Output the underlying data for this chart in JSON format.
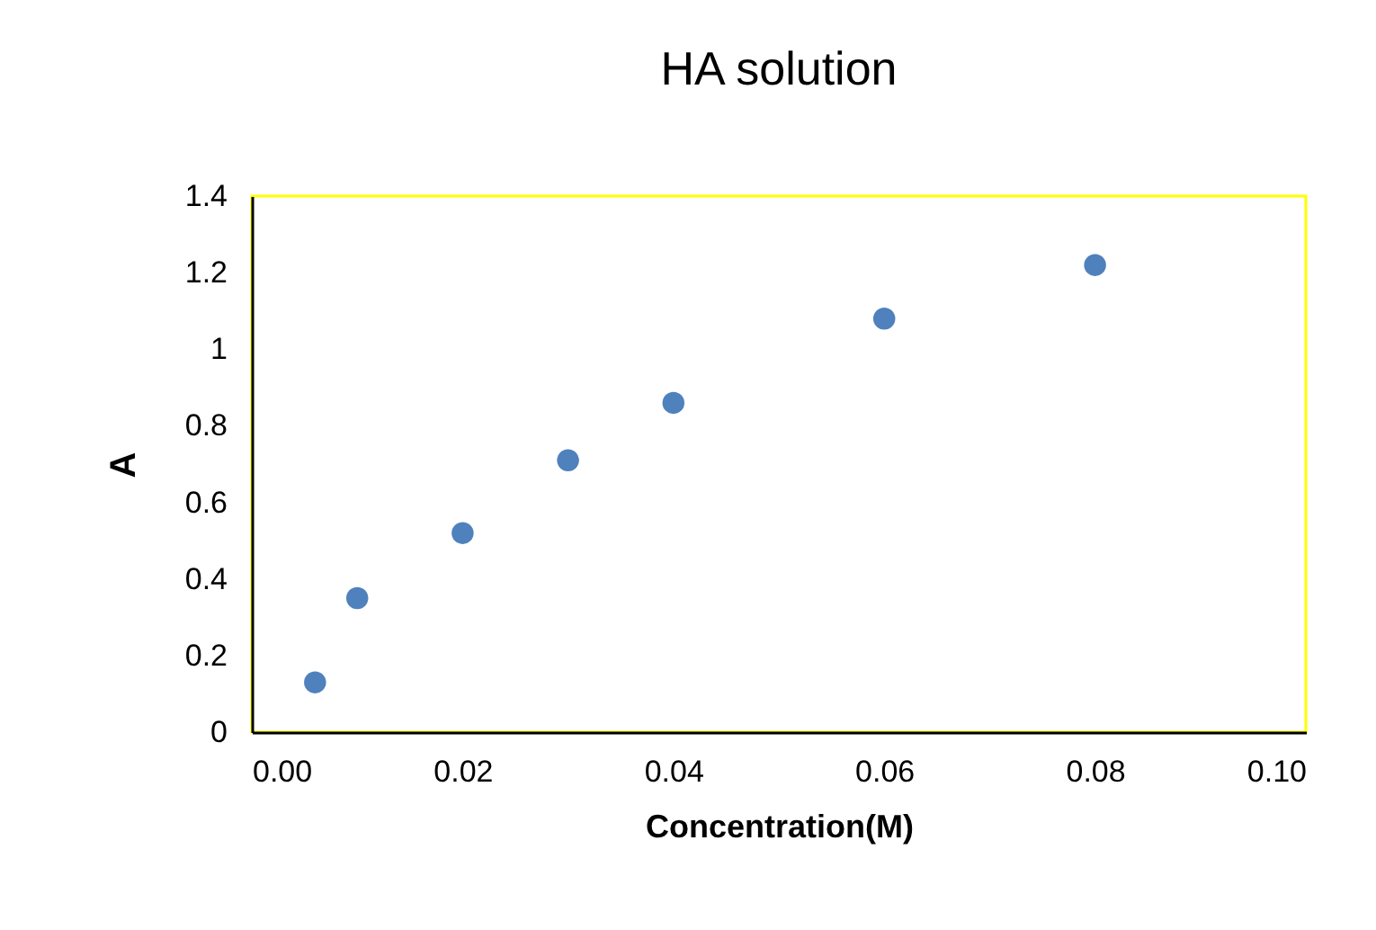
{
  "chart_data": {
    "type": "scatter",
    "title": "HA solution",
    "xlabel": "Concentration(M)",
    "ylabel": "A",
    "x": [
      0.006,
      0.01,
      0.02,
      0.03,
      0.04,
      0.06,
      0.08
    ],
    "series": [
      {
        "color": "#4f81bd",
        "values": [
          0.13,
          0.35,
          0.52,
          0.71,
          0.86,
          1.08,
          1.22
        ]
      }
    ],
    "xlim": [
      0,
      0.1
    ],
    "xticks": [
      {
        "value": 0,
        "label": "0.00"
      },
      {
        "value": 0.02,
        "label": "0.02"
      },
      {
        "value": 0.04,
        "label": "0.04"
      },
      {
        "value": 0.06,
        "label": "0.06"
      },
      {
        "value": 0.08,
        "label": "0.08"
      },
      {
        "value": 0.1,
        "label": "0.10"
      }
    ],
    "ylim": [
      0,
      1.4
    ],
    "yticks": [
      0,
      0.2,
      0.4,
      0.6,
      0.8,
      1,
      1.2,
      1.4
    ],
    "grid": false,
    "marker": "circle"
  }
}
